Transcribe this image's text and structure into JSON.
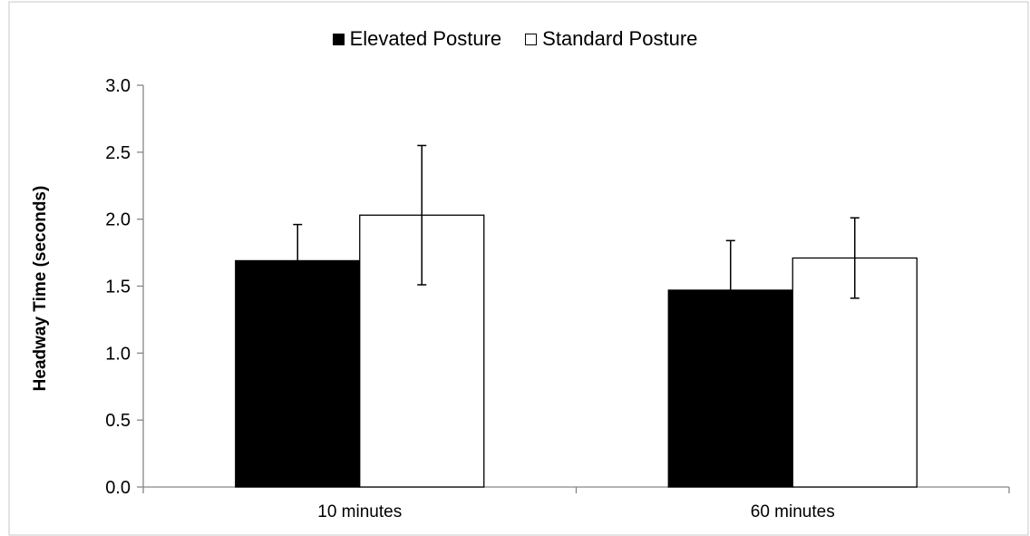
{
  "chart_data": {
    "type": "bar",
    "categories": [
      "10 minutes",
      "60 minutes"
    ],
    "series": [
      {
        "name": "Elevated Posture",
        "color": "#000000",
        "values": [
          1.69,
          1.47
        ],
        "error": [
          0.27,
          0.37
        ]
      },
      {
        "name": "Standard Posture",
        "color": "#ffffff",
        "values": [
          2.03,
          1.71
        ],
        "error": [
          0.52,
          0.3
        ]
      }
    ],
    "ylabel": "Headway Time (seconds)",
    "ylim": [
      0.0,
      3.0
    ],
    "yticks": [
      "0.0",
      "0.5",
      "1.0",
      "1.5",
      "2.0",
      "2.5",
      "3.0"
    ],
    "grid": false,
    "legend_position": "top-center"
  }
}
